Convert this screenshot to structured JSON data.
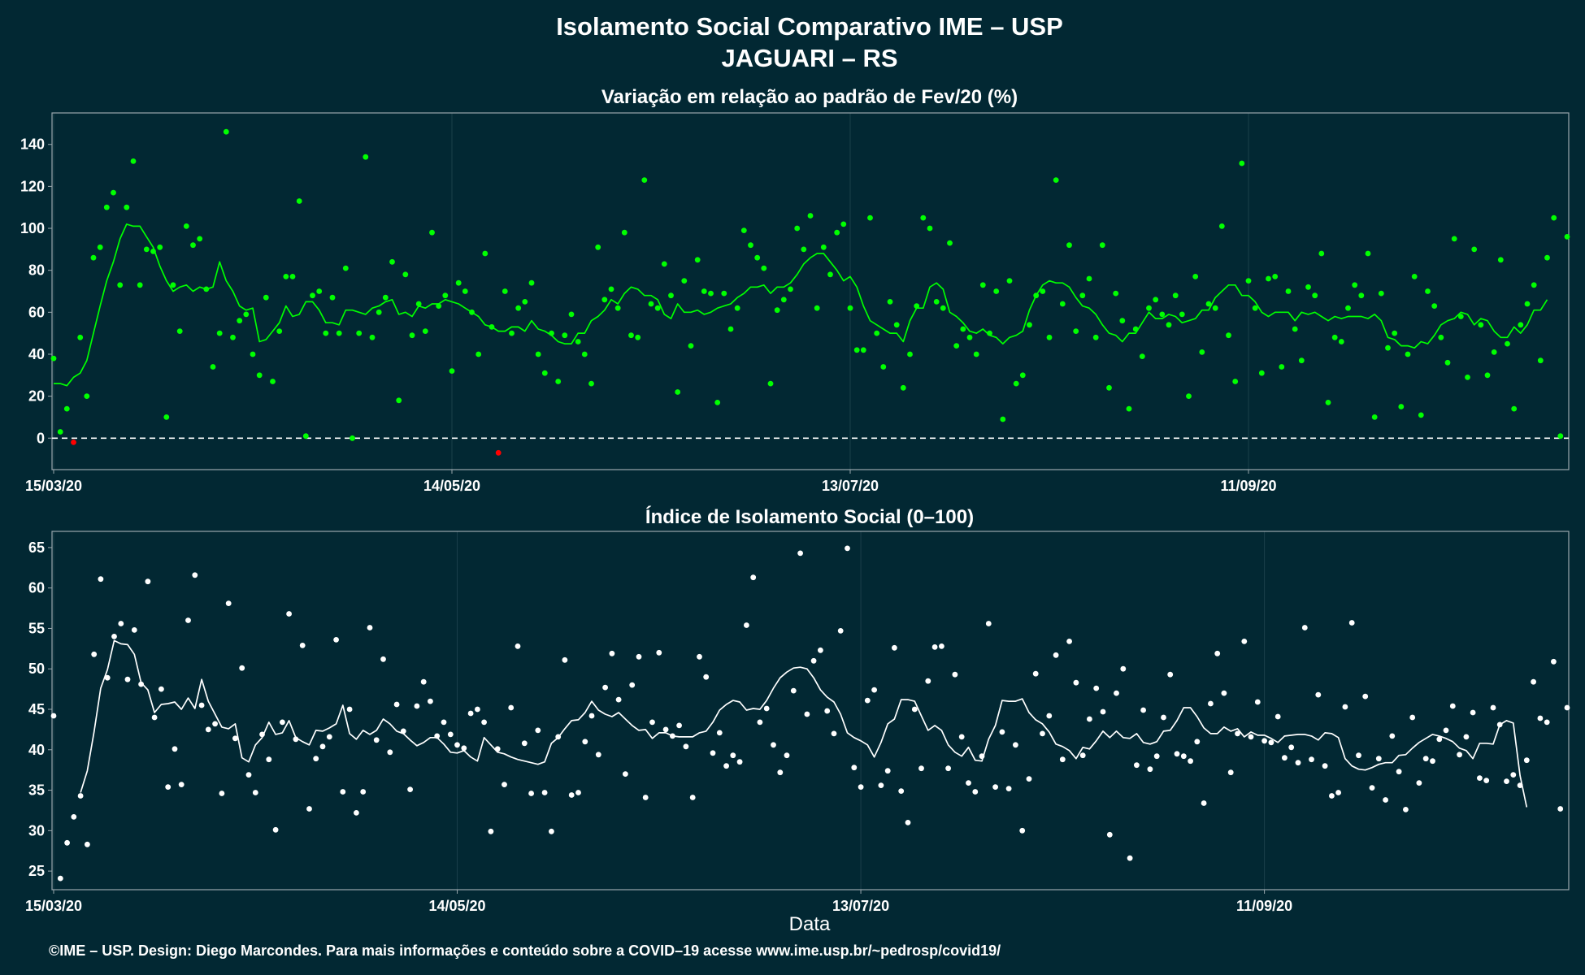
{
  "title": "Isolamento Social Comparativo IME – USP",
  "subtitle": "JAGUARI – RS",
  "footer": "©IME – USP. Design: Diego Marcondes. Para mais informações e conteúdo sobre a COVID–19 acesse www.ime.usp.br/~pedrosp/covid19/",
  "colors": {
    "background": "#022833",
    "panel_border": "#9aa7ad",
    "grid": "#1b3f4a",
    "variation_points": "#00ff00",
    "variation_line": "#00ff00",
    "negative_points": "#ff0000",
    "index_points": "#ffffff",
    "index_line": "#ffffff",
    "zero_line": "#ffffff"
  },
  "chart_data": [
    {
      "type": "scatter",
      "title": "Variação em relação ao padrão de Fev/20 (%)",
      "xlabel": "",
      "ylabel": "",
      "x_start": "15/03/20",
      "x_end": "05/11/20",
      "xticks": [
        "15/03/20",
        "14/05/20",
        "13/07/20",
        "11/09/20"
      ],
      "ylim": [
        -15,
        155
      ],
      "yticks": [
        0,
        20,
        40,
        60,
        80,
        100,
        120,
        140
      ],
      "reference_line": 0,
      "grid": true,
      "daily_values": [
        38,
        3,
        14,
        -2,
        48,
        20,
        86,
        91,
        110,
        117,
        73,
        110,
        132,
        73,
        90,
        89,
        91,
        10,
        73,
        51,
        101,
        92,
        95,
        71,
        34,
        50,
        146,
        48,
        56,
        59,
        40,
        30,
        67,
        27,
        51,
        77,
        77,
        113,
        1,
        68,
        70,
        50,
        67,
        50,
        81,
        0,
        50,
        134,
        48,
        60,
        67,
        84,
        18,
        78,
        49,
        64,
        51,
        98,
        63,
        68,
        32,
        74,
        70,
        60,
        40,
        88,
        53,
        -7,
        70,
        50,
        62,
        65,
        74,
        40,
        31,
        50,
        27,
        49,
        59,
        46,
        40,
        26,
        91,
        66,
        71,
        62,
        98,
        49,
        48,
        123,
        64,
        62,
        83,
        68,
        22,
        75,
        44,
        85,
        70,
        69,
        17,
        69,
        52,
        62,
        99,
        92,
        86,
        81,
        26,
        61,
        66,
        71,
        100,
        90,
        106,
        62,
        91,
        78,
        98,
        102,
        62,
        42,
        42,
        105,
        50,
        34,
        65,
        54,
        24,
        40,
        63,
        105,
        100,
        65,
        62,
        93,
        44,
        52,
        48,
        40,
        73,
        50,
        70,
        9,
        75,
        26,
        30,
        54,
        68,
        70,
        48,
        123,
        64,
        92,
        51,
        68,
        76,
        48,
        92,
        24,
        69,
        56,
        14,
        52,
        39,
        62,
        66,
        59,
        54,
        68,
        59,
        20,
        77,
        41,
        64,
        62,
        101,
        49,
        27,
        131,
        75,
        62,
        31,
        76,
        77,
        34,
        70,
        52,
        37,
        72,
        68,
        88,
        17,
        48,
        46,
        62,
        73,
        68,
        88,
        10,
        69,
        43,
        50,
        15,
        40,
        77,
        11,
        70,
        63,
        48,
        36,
        95,
        58,
        29,
        90,
        54,
        30,
        41,
        85,
        45,
        14,
        54,
        64,
        73,
        37,
        86,
        105,
        1,
        96
      ],
      "moving_average": [
        26,
        26,
        25,
        29,
        31,
        37,
        50,
        63,
        75,
        84,
        95,
        102,
        101,
        101,
        96,
        91,
        82,
        75,
        70,
        72,
        73,
        70,
        72,
        71,
        72,
        84,
        75,
        70,
        63,
        61,
        62,
        46,
        47,
        51,
        55,
        63,
        58,
        59,
        65,
        65,
        61,
        55,
        55,
        54,
        61,
        61,
        60,
        59,
        62,
        63,
        65,
        66,
        59,
        60,
        58,
        63,
        62,
        64,
        64,
        66,
        65,
        64,
        62,
        60,
        58,
        54,
        53,
        51,
        51,
        53,
        53,
        51,
        56,
        52,
        51,
        49,
        46,
        45,
        45,
        50,
        50,
        56,
        58,
        61,
        66,
        64,
        69,
        72,
        71,
        68,
        68,
        66,
        59,
        57,
        64,
        60,
        60,
        61,
        59,
        60,
        62,
        63,
        64,
        67,
        69,
        72,
        72,
        73,
        69,
        72,
        72,
        74,
        78,
        83,
        86,
        88,
        88,
        84,
        80,
        75,
        77,
        72,
        63,
        56,
        54,
        52,
        50,
        50,
        46,
        56,
        62,
        62,
        72,
        74,
        71,
        60,
        58,
        55,
        51,
        50,
        52,
        49,
        48,
        45,
        48,
        49,
        51,
        61,
        68,
        73,
        75,
        74,
        74,
        72,
        67,
        63,
        62,
        59,
        54,
        50,
        49,
        46,
        50,
        50,
        55,
        60,
        57,
        57,
        59,
        58,
        55,
        56,
        57,
        61,
        61,
        67,
        70,
        73,
        73,
        68,
        68,
        65,
        60,
        58,
        60,
        60,
        60,
        56,
        60,
        59,
        60,
        58,
        56,
        58,
        57,
        58,
        58,
        58,
        57,
        59,
        56,
        48,
        47,
        44,
        44,
        43,
        46,
        45,
        49,
        54,
        56,
        57,
        60,
        59,
        54,
        57,
        56,
        51,
        48,
        48,
        53,
        50,
        54,
        61,
        61,
        66
      ]
    },
    {
      "type": "scatter",
      "title": "Índice de Isolamento Social (0–100)",
      "xlabel": "Data",
      "ylabel": "",
      "x_start": "15/03/20",
      "x_end": "05/11/20",
      "xticks": [
        "15/03/20",
        "14/05/20",
        "13/07/20",
        "11/09/20"
      ],
      "ylim": [
        22.7,
        67
      ],
      "yticks": [
        25,
        30,
        35,
        40,
        45,
        50,
        55,
        60,
        65
      ],
      "grid": true,
      "daily_values": [
        44.2,
        24.1,
        28.5,
        31.7,
        34.3,
        28.3,
        51.8,
        61.1,
        48.9,
        54.0,
        55.6,
        48.7,
        54.8,
        48.1,
        60.8,
        44.0,
        47.5,
        35.4,
        40.1,
        35.7,
        56.0,
        61.6,
        45.5,
        42.5,
        43.2,
        34.6,
        58.1,
        41.4,
        50.1,
        36.9,
        34.7,
        41.9,
        38.8,
        30.1,
        43.4,
        56.8,
        41.3,
        52.9,
        32.7,
        38.9,
        40.4,
        41.6,
        53.6,
        34.8,
        45.0,
        32.2,
        34.8,
        55.1,
        41.2,
        51.2,
        39.7,
        45.6,
        42.3,
        35.1,
        45.4,
        48.4,
        46.0,
        41.7,
        43.4,
        41.9,
        40.6,
        40.2,
        44.5,
        45.0,
        43.4,
        29.9,
        40.1,
        35.7,
        45.2,
        52.8,
        40.8,
        34.6,
        42.4,
        34.7,
        29.9,
        41.6,
        51.1,
        34.4,
        34.7,
        41.0,
        44.2,
        39.4,
        47.7,
        51.9,
        46.2,
        37.0,
        48.0,
        51.5,
        34.1,
        43.4,
        52.0,
        42.5,
        41.7,
        43.0,
        40.4,
        34.1,
        51.5,
        49.0,
        39.6,
        42.1,
        38.0,
        39.3,
        38.5,
        55.4,
        61.3,
        43.4,
        45.1,
        40.6,
        37.2,
        39.3,
        47.3,
        64.3,
        44.4,
        51.0,
        52.3,
        44.8,
        42.0,
        54.7,
        64.9,
        37.8,
        35.4,
        46.1,
        47.4,
        35.6,
        37.4,
        52.6,
        34.9,
        31.0,
        45.0,
        37.7,
        48.5,
        52.7,
        52.8,
        37.7,
        49.3,
        41.6,
        35.9,
        34.8,
        39.2,
        55.6,
        35.4,
        42.2,
        35.2,
        40.6,
        30.0,
        36.4,
        49.4,
        42.0,
        44.2,
        51.7,
        38.8,
        53.4,
        48.3,
        39.3,
        43.8,
        47.6,
        44.7,
        29.5,
        47.0,
        50.0,
        26.6,
        38.1,
        44.9,
        37.6,
        39.2,
        44.0,
        49.3,
        39.5,
        39.2,
        38.6,
        41.0,
        33.4,
        45.7,
        51.9,
        47.0,
        37.2,
        42.0,
        53.4,
        41.6,
        45.9,
        41.1,
        40.9,
        44.1,
        39.0,
        40.3,
        38.4,
        55.1,
        38.8,
        46.8,
        38.0,
        34.3,
        34.7,
        45.3,
        55.7,
        39.3,
        46.6,
        35.3,
        38.9,
        33.8,
        41.7,
        37.3,
        32.6,
        44.0,
        35.9,
        38.9,
        38.6,
        41.3,
        42.4,
        45.4,
        39.4,
        41.6,
        44.6,
        36.5,
        36.2,
        45.2,
        43.1,
        36.1,
        36.9,
        35.6,
        38.7,
        48.4,
        43.9,
        43.4,
        50.9,
        32.7,
        45.2
      ],
      "moving_average": [
        null,
        null,
        null,
        null,
        34.7,
        37.4,
        42.2,
        47.6,
        49.9,
        53.5,
        53.1,
        53.0,
        51.8,
        48.3,
        47.4,
        44.6,
        45.6,
        45.7,
        45.9,
        45.0,
        46.4,
        45.1,
        48.7,
        46.0,
        44.4,
        42.8,
        42.6,
        43.2,
        39.0,
        38.5,
        40.6,
        41.5,
        43.4,
        41.9,
        42.1,
        43.6,
        41.5,
        41.0,
        40.6,
        42.4,
        42.3,
        42.7,
        43.2,
        45.5,
        42.0,
        41.3,
        42.4,
        41.9,
        42.4,
        43.8,
        43.2,
        42.3,
        42.0,
        41.2,
        40.5,
        40.9,
        41.5,
        41.5,
        40.7,
        39.7,
        39.6,
        39.9,
        39.1,
        38.6,
        41.5,
        40.6,
        39.7,
        39.5,
        39.1,
        38.8,
        38.6,
        38.4,
        38.2,
        38.5,
        40.8,
        41.5,
        42.6,
        43.6,
        43.7,
        44.6,
        46.0,
        44.9,
        44.4,
        44.1,
        44.6,
        43.8,
        43.0,
        42.4,
        42.5,
        41.4,
        42.1,
        42.1,
        41.7,
        41.6,
        41.6,
        41.6,
        42.1,
        42.3,
        43.4,
        44.9,
        45.6,
        46.1,
        45.9,
        44.9,
        45.1,
        45.0,
        46.1,
        47.6,
        48.9,
        49.6,
        50.1,
        50.2,
        50.0,
        48.9,
        47.4,
        46.5,
        45.9,
        44.4,
        42.1,
        41.5,
        41.1,
        40.6,
        39.1,
        40.9,
        43.2,
        43.8,
        46.2,
        46.2,
        46.0,
        44.2,
        42.4,
        43.0,
        42.4,
        40.6,
        39.7,
        39.2,
        40.3,
        38.7,
        38.6,
        41.3,
        43.0,
        46.1,
        46.0,
        46.0,
        46.3,
        44.6,
        43.7,
        43.2,
        42.2,
        40.7,
        40.4,
        39.9,
        38.9,
        40.3,
        40.1,
        41.1,
        42.3,
        41.5,
        42.3,
        41.5,
        41.4,
        42.0,
        40.9,
        40.7,
        41.0,
        42.3,
        42.4,
        43.6,
        45.2,
        45.2,
        44.1,
        42.7,
        42.0,
        42.0,
        42.8,
        42.3,
        42.6,
        41.6,
        42.2,
        41.8,
        41.8,
        41.4,
        40.9,
        41.7,
        41.8,
        41.9,
        41.9,
        41.7,
        41.2,
        42.1,
        42.0,
        41.5,
        38.9,
        38.0,
        37.6,
        37.5,
        37.8,
        38.2,
        38.4,
        38.4,
        39.3,
        39.4,
        40.2,
        40.9,
        41.4,
        41.9,
        41.7,
        41.4,
        41.0,
        40.2,
        39.9,
        38.9,
        40.8,
        40.8,
        40.7,
        43.1,
        43.6,
        43.3,
        36.8,
        32.9
      ]
    }
  ]
}
